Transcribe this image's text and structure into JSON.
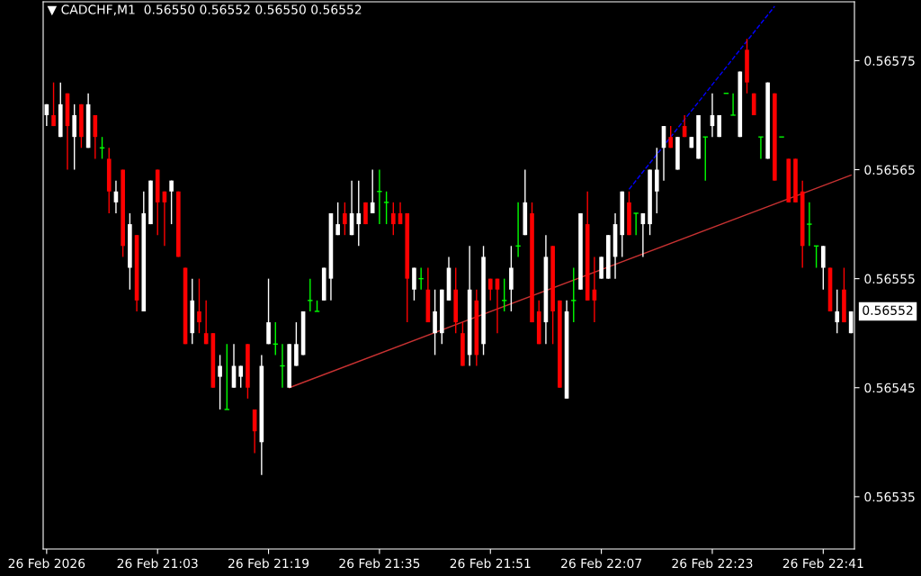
{
  "chart_data": {
    "type": "candlestick",
    "title": "▼ CADCHF,M1  0.56550 0.56552 0.56550 0.56552",
    "categories": [
      "26 Feb 2026",
      null,
      null,
      null,
      null,
      null,
      null,
      null,
      null,
      null,
      null,
      null,
      null,
      null,
      null,
      null,
      "26 Feb 21:03",
      null,
      null,
      null,
      null,
      null,
      null,
      null,
      null,
      null,
      null,
      null,
      null,
      null,
      null,
      null,
      "26 Feb 21:19",
      null,
      null,
      null,
      null,
      null,
      null,
      null,
      null,
      null,
      null,
      null,
      null,
      null,
      null,
      null,
      "26 Feb 21:35",
      null,
      null,
      null,
      null,
      null,
      null,
      null,
      null,
      null,
      null,
      null,
      null,
      null,
      null,
      null,
      "26 Feb 21:51",
      null,
      null,
      null,
      null,
      null,
      null,
      null,
      null,
      null,
      null,
      null,
      null,
      null,
      null,
      null,
      "26 Feb 22:07",
      null,
      null,
      null,
      null,
      null,
      null,
      null,
      null,
      null,
      null,
      null,
      null,
      null,
      null,
      null,
      "26 Feb 22:23",
      null,
      null,
      null,
      null,
      null,
      null,
      null,
      null,
      null,
      null,
      null,
      null,
      null,
      null,
      null,
      "26 Feb 22:41",
      null,
      null,
      null,
      null
    ],
    "ohlc": [
      [
        0.5657,
        0.56571,
        0.56569,
        0.56571
      ],
      [
        0.5657,
        0.56573,
        0.56569,
        0.56569
      ],
      [
        0.56568,
        0.56573,
        0.56568,
        0.56571
      ],
      [
        0.56572,
        0.56572,
        0.56565,
        0.56569
      ],
      [
        0.56568,
        0.56571,
        0.56565,
        0.5657
      ],
      [
        0.56571,
        0.56571,
        0.56567,
        0.56568
      ],
      [
        0.56567,
        0.56572,
        0.56567,
        0.56571
      ],
      [
        0.5657,
        0.5657,
        0.56566,
        0.56568
      ],
      [
        0.56567,
        0.56568,
        0.56566,
        0.56567
      ],
      [
        0.56566,
        0.56567,
        0.56561,
        0.56563
      ],
      [
        0.56562,
        0.56564,
        0.56561,
        0.56563
      ],
      [
        0.56565,
        0.56565,
        0.56557,
        0.56558
      ],
      [
        0.56556,
        0.56561,
        0.56554,
        0.5656
      ],
      [
        0.56559,
        0.56559,
        0.56552,
        0.56553
      ],
      [
        0.56552,
        0.56563,
        0.56552,
        0.56561
      ],
      [
        0.5656,
        0.56564,
        0.5656,
        0.56564
      ],
      [
        0.56565,
        0.56565,
        0.56559,
        0.56562
      ],
      [
        0.56563,
        0.56563,
        0.56558,
        0.56562
      ],
      [
        0.56563,
        0.56564,
        0.5656,
        0.56564
      ],
      [
        0.56563,
        0.56563,
        0.56557,
        0.56557
      ],
      [
        0.56556,
        0.56556,
        0.56549,
        0.56549
      ],
      [
        0.5655,
        0.56555,
        0.56549,
        0.56553
      ],
      [
        0.56552,
        0.56555,
        0.5655,
        0.56551
      ],
      [
        0.5655,
        0.56553,
        0.56549,
        0.56549
      ],
      [
        0.5655,
        0.5655,
        0.56545,
        0.56545
      ],
      [
        0.56546,
        0.56548,
        0.56543,
        0.56547
      ],
      [
        0.56543,
        0.56549,
        0.56543,
        0.56543
      ],
      [
        0.56545,
        0.56549,
        0.56545,
        0.56547
      ],
      [
        0.56546,
        0.56547,
        0.56545,
        0.56547
      ],
      [
        0.56549,
        0.56549,
        0.56544,
        0.56545
      ],
      [
        0.56543,
        0.56543,
        0.56539,
        0.56541
      ],
      [
        0.5654,
        0.56548,
        0.56537,
        0.56547
      ],
      [
        0.56549,
        0.56555,
        0.56549,
        0.56551
      ],
      [
        0.56549,
        0.56551,
        0.56548,
        0.56549
      ],
      [
        0.56547,
        0.56549,
        0.56545,
        0.56547
      ],
      [
        0.56545,
        0.56549,
        0.56545,
        0.56549
      ],
      [
        0.56547,
        0.56551,
        0.56547,
        0.56549
      ],
      [
        0.56548,
        0.56552,
        0.56548,
        0.56552
      ],
      [
        0.56553,
        0.56555,
        0.56552,
        0.56553
      ],
      [
        0.56552,
        0.56553,
        0.56552,
        0.56552
      ],
      [
        0.56553,
        0.56556,
        0.56553,
        0.56556
      ],
      [
        0.56555,
        0.56561,
        0.56553,
        0.56561
      ],
      [
        0.56559,
        0.56562,
        0.56559,
        0.5656
      ],
      [
        0.56561,
        0.56562,
        0.56559,
        0.5656
      ],
      [
        0.56559,
        0.56564,
        0.56559,
        0.56561
      ],
      [
        0.5656,
        0.56564,
        0.56558,
        0.56561
      ],
      [
        0.56562,
        0.56562,
        0.5656,
        0.5656
      ],
      [
        0.56561,
        0.56565,
        0.56561,
        0.56562
      ],
      [
        0.56563,
        0.56565,
        0.5656,
        0.56563
      ],
      [
        0.56562,
        0.56563,
        0.5656,
        0.56562
      ],
      [
        0.56561,
        0.56562,
        0.56559,
        0.5656
      ],
      [
        0.56561,
        0.56562,
        0.5656,
        0.5656
      ],
      [
        0.56561,
        0.56561,
        0.56551,
        0.56555
      ],
      [
        0.56554,
        0.56556,
        0.56553,
        0.56556
      ],
      [
        0.56555,
        0.56556,
        0.56554,
        0.56555
      ],
      [
        0.56554,
        0.56556,
        0.56551,
        0.56551
      ],
      [
        0.5655,
        0.56554,
        0.56548,
        0.56552
      ],
      [
        0.5655,
        0.56554,
        0.56549,
        0.56554
      ],
      [
        0.56553,
        0.56557,
        0.56553,
        0.56556
      ],
      [
        0.56554,
        0.56556,
        0.5655,
        0.56551
      ],
      [
        0.5655,
        0.56551,
        0.56547,
        0.56547
      ],
      [
        0.56548,
        0.56558,
        0.56547,
        0.56554
      ],
      [
        0.56553,
        0.56554,
        0.56547,
        0.56548
      ],
      [
        0.56549,
        0.56558,
        0.56548,
        0.56557
      ],
      [
        0.56555,
        0.56555,
        0.56553,
        0.56554
      ],
      [
        0.56555,
        0.56555,
        0.5655,
        0.56554
      ],
      [
        0.56553,
        0.56555,
        0.56552,
        0.56553
      ],
      [
        0.56554,
        0.56558,
        0.56552,
        0.56556
      ],
      [
        0.56558,
        0.56562,
        0.56557,
        0.56558
      ],
      [
        0.56559,
        0.56565,
        0.56559,
        0.56562
      ],
      [
        0.56561,
        0.56562,
        0.56551,
        0.56551
      ],
      [
        0.56552,
        0.56553,
        0.56549,
        0.56549
      ],
      [
        0.56551,
        0.56559,
        0.56549,
        0.56557
      ],
      [
        0.56558,
        0.56558,
        0.56549,
        0.56552
      ],
      [
        0.56553,
        0.56553,
        0.56545,
        0.56545
      ],
      [
        0.56544,
        0.56553,
        0.56544,
        0.56552
      ],
      [
        0.56553,
        0.56556,
        0.56551,
        0.56553
      ],
      [
        0.56554,
        0.56561,
        0.56554,
        0.56561
      ],
      [
        0.5656,
        0.56563,
        0.56553,
        0.56553
      ],
      [
        0.56554,
        0.56557,
        0.56551,
        0.56553
      ],
      [
        0.56555,
        0.56557,
        0.56555,
        0.56557
      ],
      [
        0.56555,
        0.56559,
        0.56555,
        0.56559
      ],
      [
        0.56557,
        0.56561,
        0.56555,
        0.5656
      ],
      [
        0.56559,
        0.56563,
        0.56557,
        0.56563
      ],
      [
        0.56562,
        0.56563,
        0.56559,
        0.56559
      ],
      [
        0.56561,
        0.56561,
        0.56559,
        0.56561
      ],
      [
        0.5656,
        0.56561,
        0.56557,
        0.56561
      ],
      [
        0.5656,
        0.56565,
        0.56559,
        0.56565
      ],
      [
        0.56563,
        0.56567,
        0.56561,
        0.56565
      ],
      [
        0.56567,
        0.56569,
        0.56564,
        0.56569
      ],
      [
        0.56568,
        0.56569,
        0.56567,
        0.56567
      ],
      [
        0.56565,
        0.56568,
        0.56565,
        0.56568
      ],
      [
        0.56569,
        0.5657,
        0.56568,
        0.56568
      ],
      [
        0.56567,
        0.56568,
        0.56567,
        0.56568
      ],
      [
        0.56566,
        0.5657,
        0.56566,
        0.5657
      ],
      [
        0.56568,
        0.56568,
        0.56564,
        0.56568
      ],
      [
        0.56569,
        0.56572,
        0.56568,
        0.5657
      ],
      [
        0.56568,
        0.5657,
        0.56568,
        0.5657
      ],
      [
        0.56572,
        0.56572,
        0.56572,
        0.56572
      ],
      [
        0.5657,
        0.56572,
        0.5657,
        0.5657
      ],
      [
        0.56568,
        0.56574,
        0.56568,
        0.56574
      ],
      [
        0.56576,
        0.56577,
        0.56572,
        0.56573
      ],
      [
        0.56572,
        0.56572,
        0.5657,
        0.5657
      ],
      [
        0.56568,
        0.56568,
        0.56566,
        0.56568
      ],
      [
        0.56566,
        0.56573,
        0.56566,
        0.56573
      ],
      [
        0.56572,
        0.56572,
        0.56564,
        0.56564
      ],
      [
        0.56568,
        0.56568,
        0.56568,
        0.56568
      ],
      [
        0.56566,
        0.56566,
        0.56562,
        0.56562
      ],
      [
        0.56566,
        0.56566,
        0.56562,
        0.56562
      ],
      [
        0.56563,
        0.56564,
        0.56556,
        0.56558
      ],
      [
        0.5656,
        0.56562,
        0.56558,
        0.5656
      ],
      [
        0.56558,
        0.56558,
        0.56556,
        0.56558
      ],
      [
        0.56556,
        0.56558,
        0.56554,
        0.56558
      ],
      [
        0.56556,
        0.56556,
        0.56552,
        0.56552
      ],
      [
        0.56551,
        0.56554,
        0.5655,
        0.56552
      ],
      [
        0.56554,
        0.56556,
        0.56551,
        0.56551
      ],
      [
        0.5655,
        0.56552,
        0.5655,
        0.56552
      ]
    ],
    "colors": [
      "#ffffff",
      "#ff0000",
      "#ffffff",
      "#ff0000",
      "#ffffff",
      "#ff0000",
      "#ffffff",
      "#ff0000",
      "#00ff00",
      "#ff0000",
      "#ffffff",
      "#ff0000",
      "#ffffff",
      "#ff0000",
      "#ffffff",
      "#ffffff",
      "#ff0000",
      "#ff0000",
      "#ffffff",
      "#ff0000",
      "#ff0000",
      "#ffffff",
      "#ff0000",
      "#ff0000",
      "#ff0000",
      "#ffffff",
      "#00ff00",
      "#ffffff",
      "#ffffff",
      "#ff0000",
      "#ff0000",
      "#ffffff",
      "#ffffff",
      "#00ff00",
      "#00ff00",
      "#ffffff",
      "#ffffff",
      "#ffffff",
      "#00ff00",
      "#00ff00",
      "#ffffff",
      "#ffffff",
      "#ffffff",
      "#ff0000",
      "#ffffff",
      "#ffffff",
      "#ff0000",
      "#ffffff",
      "#00ff00",
      "#00ff00",
      "#ff0000",
      "#ff0000",
      "#ff0000",
      "#ffffff",
      "#00ff00",
      "#ff0000",
      "#ffffff",
      "#ffffff",
      "#ffffff",
      "#ff0000",
      "#ff0000",
      "#ffffff",
      "#ff0000",
      "#ffffff",
      "#ff0000",
      "#ff0000",
      "#00ff00",
      "#ffffff",
      "#00ff00",
      "#ffffff",
      "#ff0000",
      "#ff0000",
      "#ffffff",
      "#ff0000",
      "#ff0000",
      "#ffffff",
      "#00ff00",
      "#ffffff",
      "#ff0000",
      "#ff0000",
      "#ffffff",
      "#ffffff",
      "#ffffff",
      "#ffffff",
      "#ff0000",
      "#00ff00",
      "#ffffff",
      "#ffffff",
      "#ffffff",
      "#ffffff",
      "#ff0000",
      "#ffffff",
      "#ff0000",
      "#ffffff",
      "#ffffff",
      "#00ff00",
      "#ffffff",
      "#ffffff",
      "#00ff00",
      "#00ff00",
      "#ffffff",
      "#ff0000",
      "#ff0000",
      "#00ff00",
      "#ffffff",
      "#ff0000",
      "#00ff00",
      "#ff0000",
      "#ff0000",
      "#ff0000",
      "#00ff00",
      "#00ff00",
      "#ffffff",
      "#ff0000",
      "#ffffff",
      "#ff0000",
      "#ffffff"
    ],
    "series": [
      {
        "type": "line",
        "color": "#c83232",
        "line_style": "solid",
        "values": [
          null,
          null,
          null,
          null,
          null,
          null,
          null,
          null,
          null,
          null,
          null,
          null,
          null,
          null,
          null,
          null,
          null,
          null,
          null,
          null,
          null,
          null,
          null,
          null,
          null,
          null,
          null,
          null,
          null,
          null,
          null,
          null,
          null,
          null,
          null,
          0.56545,
          null,
          null,
          null,
          null,
          null,
          null,
          null,
          null,
          null,
          null,
          null,
          null,
          null,
          null,
          null,
          null,
          null,
          null,
          null,
          null,
          null,
          null,
          null,
          null,
          null,
          null,
          null,
          null,
          null,
          null,
          null,
          null,
          null,
          null,
          null,
          null,
          null,
          null,
          null,
          null,
          null,
          null,
          null,
          null,
          null,
          null,
          null,
          null,
          null,
          null,
          null,
          null,
          null,
          null,
          null,
          null,
          null,
          null,
          null,
          null,
          null,
          null,
          null,
          null,
          null,
          null,
          null,
          null,
          null,
          null,
          null,
          null,
          null,
          null,
          null,
          null,
          null,
          null,
          null,
          null,
          0.565645
        ]
      },
      {
        "type": "line",
        "color": "#0000ff",
        "line_style": "dashed",
        "values": [
          null,
          null,
          null,
          null,
          null,
          null,
          null,
          null,
          null,
          null,
          null,
          null,
          null,
          null,
          null,
          null,
          null,
          null,
          null,
          null,
          null,
          null,
          null,
          null,
          null,
          null,
          null,
          null,
          null,
          null,
          null,
          null,
          null,
          null,
          null,
          null,
          null,
          null,
          null,
          null,
          null,
          null,
          null,
          null,
          null,
          null,
          null,
          null,
          null,
          null,
          null,
          null,
          null,
          null,
          null,
          null,
          null,
          null,
          null,
          null,
          null,
          null,
          null,
          null,
          null,
          null,
          null,
          null,
          null,
          null,
          null,
          null,
          null,
          null,
          null,
          null,
          null,
          null,
          null,
          null,
          null,
          null,
          null,
          null,
          0.565632,
          null,
          null,
          null,
          null,
          null,
          null,
          null,
          null,
          null,
          null,
          null,
          null,
          null,
          null,
          null,
          null,
          null,
          null,
          null,
          null,
          0.5658,
          null,
          null,
          null,
          null,
          null,
          null,
          null,
          null,
          null,
          null,
          null
        ]
      }
    ],
    "ylim": [
      0.565302,
      0.565804
    ],
    "yticks": [
      0.56535,
      0.56545,
      0.56555,
      0.56565,
      0.56575
    ],
    "annotations": [
      "0.56552"
    ],
    "grid": false
  }
}
